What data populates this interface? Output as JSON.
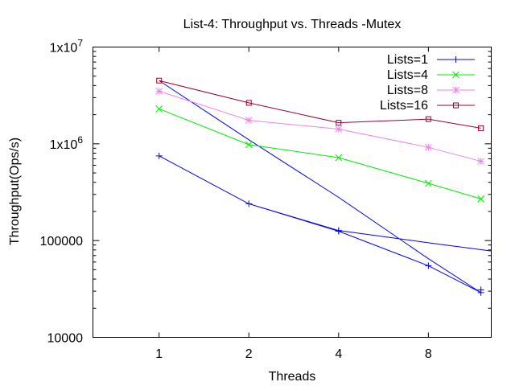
{
  "chart_data": {
    "type": "line",
    "title": "List-4: Throughput vs. Threads -Mutex",
    "xlabel": "Threads",
    "ylabel": "Throughput(Ops/s)",
    "x_scale": "log2",
    "y_scale": "log10",
    "xlim": [
      0.6,
      13
    ],
    "ylim": [
      10000,
      10000000
    ],
    "x_ticks": [
      1,
      2,
      4,
      8
    ],
    "x_tick_labels": [
      "1",
      "2",
      "4",
      "8"
    ],
    "y_ticks": [
      {
        "value": 10000,
        "label": "10000",
        "exponent": ""
      },
      {
        "value": 100000,
        "label": "100000",
        "exponent": ""
      },
      {
        "value": 1000000,
        "label": "1x10",
        "exponent": "6"
      },
      {
        "value": 10000000,
        "label": "1x10",
        "exponent": "7"
      }
    ],
    "legend_position": "top-right",
    "series": [
      {
        "name": "Lists=1",
        "color": "#0000ff",
        "marker": "plus",
        "points": [
          [
            1,
            4500000
          ],
          [
            2,
            1100000
          ],
          [
            4,
            280000
          ],
          [
            8,
            65000
          ],
          [
            12,
            29000
          ],
          [
            8,
            55000
          ],
          [
            4,
            125000
          ],
          [
            2,
            240000
          ],
          [
            1,
            750000
          ],
          [
            2,
            240000
          ],
          [
            4,
            127000
          ],
          [
            8,
            95000
          ],
          [
            13,
            78000
          ]
        ],
        "marker_points": [
          [
            1,
            750000
          ],
          [
            2,
            240000
          ],
          [
            4,
            127000
          ],
          [
            4,
            125000
          ],
          [
            8,
            55000
          ],
          [
            12,
            31000
          ],
          [
            12,
            29000
          ]
        ]
      },
      {
        "name": "Lists=4",
        "color": "#00ee00",
        "marker": "cross",
        "points": [
          [
            1,
            2300000
          ],
          [
            2,
            980000
          ],
          [
            4,
            720000
          ],
          [
            8,
            390000
          ],
          [
            12,
            270000
          ]
        ],
        "marker_points": [
          [
            1,
            2300000
          ],
          [
            2,
            980000
          ],
          [
            4,
            720000
          ],
          [
            8,
            390000
          ],
          [
            12,
            270000
          ]
        ]
      },
      {
        "name": "Lists=8",
        "color": "#ee82ee",
        "marker": "star",
        "points": [
          [
            1,
            3500000
          ],
          [
            2,
            1750000
          ],
          [
            4,
            1420000
          ],
          [
            8,
            920000
          ],
          [
            12,
            660000
          ]
        ],
        "marker_points": [
          [
            1,
            3500000
          ],
          [
            2,
            1750000
          ],
          [
            4,
            1420000
          ],
          [
            8,
            920000
          ],
          [
            12,
            660000
          ]
        ]
      },
      {
        "name": "Lists=16",
        "color": "#a0002e",
        "marker": "square",
        "points": [
          [
            1,
            4500000
          ],
          [
            2,
            2650000
          ],
          [
            4,
            1650000
          ],
          [
            8,
            1800000
          ],
          [
            12,
            1450000
          ]
        ],
        "marker_points": [
          [
            1,
            4500000
          ],
          [
            2,
            2650000
          ],
          [
            4,
            1650000
          ],
          [
            8,
            1800000
          ],
          [
            12,
            1450000
          ]
        ]
      }
    ]
  }
}
